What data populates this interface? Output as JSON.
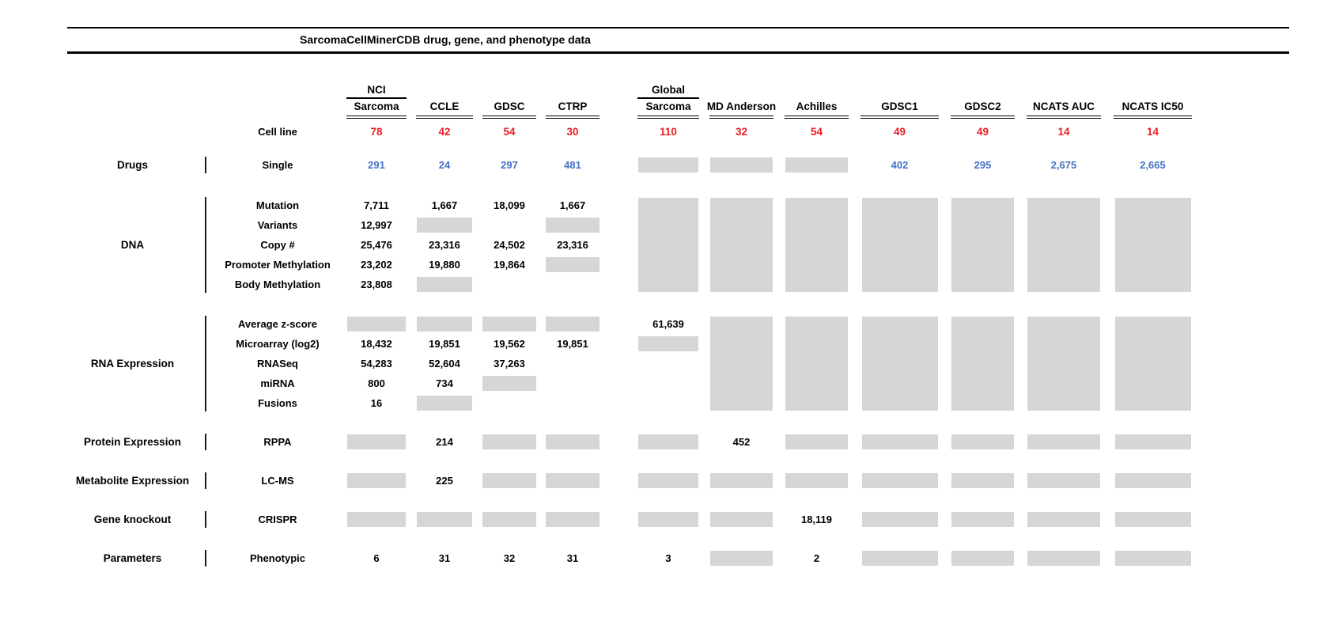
{
  "chart_data": {
    "type": "table",
    "title": "SarcomaCellMinerCDB drug, gene, and phenotype data",
    "colors": {
      "cell_line_count": "#ed1c24",
      "drug_count": "#4472c4",
      "missing_box": "#d6d6d6"
    },
    "missing_token": "GRAY",
    "columns": [
      {
        "top": "NCI",
        "label": "Sarcoma"
      },
      {
        "top": "",
        "label": "CCLE"
      },
      {
        "top": "",
        "label": "GDSC"
      },
      {
        "top": "",
        "label": "CTRP"
      },
      {
        "top": "Global",
        "label": "Sarcoma"
      },
      {
        "top": "",
        "label": "MD Anderson"
      },
      {
        "top": "",
        "label": "Achilles"
      },
      {
        "top": "",
        "label": "GDSC1"
      },
      {
        "top": "",
        "label": "GDSC2"
      },
      {
        "top": "",
        "label": "NCATS AUC"
      },
      {
        "top": "",
        "label": "NCATS IC50"
      }
    ],
    "cell_line": {
      "label": "Cell line",
      "values": [
        "78",
        "42",
        "54",
        "30",
        "110",
        "32",
        "54",
        "49",
        "49",
        "14",
        "14"
      ]
    },
    "sections": [
      {
        "group": "Drugs",
        "value_color": "blue",
        "rows": [
          {
            "label": "Single",
            "cells": [
              "291",
              "24",
              "297",
              "481",
              "GRAY",
              "GRAY",
              "GRAY",
              "402",
              "295",
              "2,675",
              "2,665"
            ]
          }
        ]
      },
      {
        "group": "DNA",
        "span_gray_columns": [
          4,
          5,
          6,
          7,
          8,
          9,
          10
        ],
        "rows": [
          {
            "label": "Mutation",
            "cells": [
              "7,711",
              "1,667",
              "18,099",
              "1,667",
              "",
              "",
              "",
              "",
              "",
              "",
              ""
            ]
          },
          {
            "label": "Variants",
            "cells": [
              "12,997",
              "GRAY",
              "",
              "GRAY",
              "",
              "",
              "",
              "",
              "",
              "",
              ""
            ]
          },
          {
            "label": "Copy #",
            "cells": [
              "25,476",
              "23,316",
              "24,502",
              "23,316",
              "",
              "",
              "",
              "",
              "",
              "",
              ""
            ]
          },
          {
            "label": "Promoter Methylation",
            "cells": [
              "23,202",
              "19,880",
              "19,864",
              "GRAY",
              "",
              "",
              "",
              "",
              "",
              "",
              ""
            ]
          },
          {
            "label": "Body Methylation",
            "cells": [
              "23,808",
              "GRAY",
              "",
              "",
              "",
              "",
              "",
              "",
              "",
              "",
              ""
            ]
          }
        ]
      },
      {
        "group": "RNA Expression",
        "span_gray_columns": [
          5,
          6,
          7,
          8,
          9,
          10
        ],
        "rows": [
          {
            "label": "Average z-score",
            "cells": [
              "GRAY",
              "GRAY",
              "GRAY",
              "GRAY",
              "61,639",
              "",
              "",
              "",
              "",
              "",
              ""
            ]
          },
          {
            "label": "Microarray (log2)",
            "cells": [
              "18,432",
              "19,851",
              "19,562",
              "19,851",
              "GRAY",
              "",
              "",
              "",
              "",
              "",
              ""
            ]
          },
          {
            "label": "RNASeq",
            "cells": [
              "54,283",
              "52,604",
              "37,263",
              "",
              "",
              "",
              "",
              "",
              "",
              "",
              ""
            ]
          },
          {
            "label": "miRNA",
            "cells": [
              "800",
              "734",
              "GRAY",
              "",
              "",
              "",
              "",
              "",
              "",
              "",
              ""
            ]
          },
          {
            "label": "Fusions",
            "cells": [
              "16",
              "GRAY",
              "",
              "",
              "",
              "",
              "",
              "",
              "",
              "",
              ""
            ]
          }
        ]
      },
      {
        "group": "Protein Expression",
        "rows": [
          {
            "label": "RPPA",
            "cells": [
              "GRAY",
              "214",
              "GRAY",
              "GRAY",
              "GRAY",
              "452",
              "GRAY",
              "GRAY",
              "GRAY",
              "GRAY",
              "GRAY"
            ]
          }
        ]
      },
      {
        "group": "Metabolite Expression",
        "rows": [
          {
            "label": "LC-MS",
            "cells": [
              "GRAY",
              "225",
              "GRAY",
              "GRAY",
              "GRAY",
              "GRAY",
              "GRAY",
              "GRAY",
              "GRAY",
              "GRAY",
              "GRAY"
            ]
          }
        ]
      },
      {
        "group": "Gene knockout",
        "rows": [
          {
            "label": "CRISPR",
            "cells": [
              "GRAY",
              "GRAY",
              "GRAY",
              "GRAY",
              "GRAY",
              "GRAY",
              "18,119",
              "GRAY",
              "GRAY",
              "GRAY",
              "GRAY"
            ]
          }
        ]
      },
      {
        "group": "Parameters",
        "rows": [
          {
            "label": "Phenotypic",
            "cells": [
              "6",
              "31",
              "32",
              "31",
              "3",
              "GRAY",
              "2",
              "GRAY",
              "GRAY",
              "GRAY",
              "GRAY"
            ]
          }
        ]
      }
    ]
  }
}
